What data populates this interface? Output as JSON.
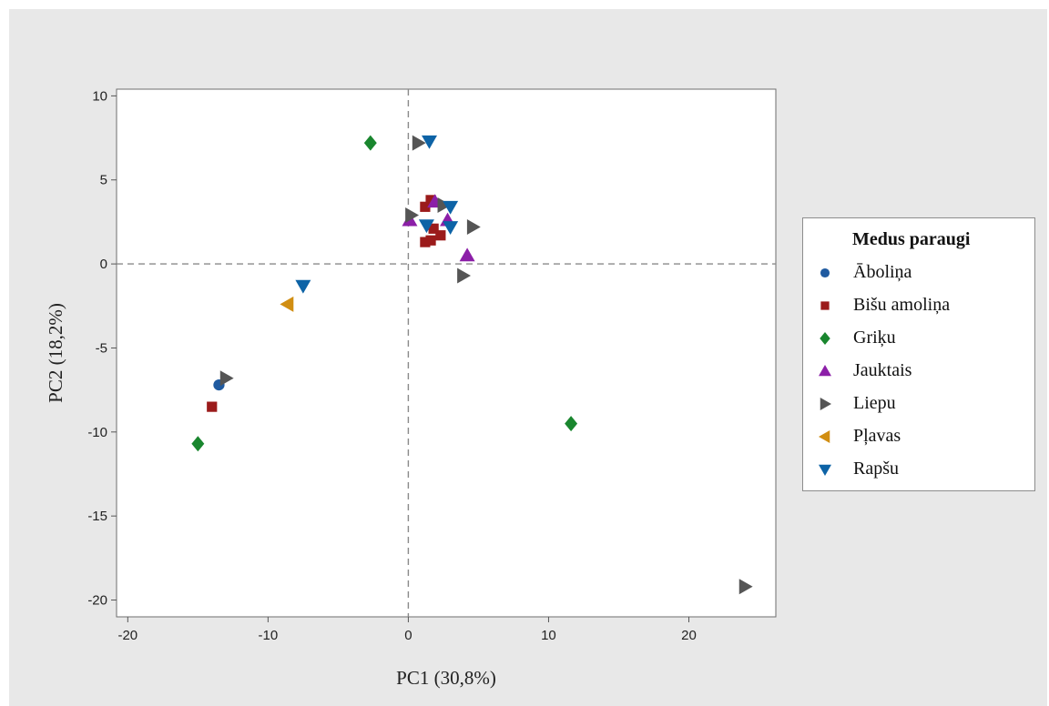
{
  "chart_data": {
    "type": "scatter",
    "xlabel": "PC1 (30,8%)",
    "ylabel": "PC2 (18,2%)",
    "xlim": [
      -20.8,
      26.2
    ],
    "ylim": [
      -21.0,
      10.4
    ],
    "xticks": [
      -20,
      -10,
      0,
      10,
      20
    ],
    "yticks": [
      10,
      5,
      0,
      -5,
      -10,
      -15,
      -20
    ],
    "reference_lines": {
      "x": 0,
      "y": 0,
      "style": "dashed"
    },
    "legend": {
      "title": "Medus paraugi",
      "placement": "right"
    },
    "series": [
      {
        "name": "Āboliņa",
        "marker": "circle",
        "color": "#1f5aa0",
        "points": [
          [
            -13.5,
            -7.2
          ]
        ]
      },
      {
        "name": "Bišu amoliņa",
        "marker": "square",
        "color": "#9b1b1b",
        "points": [
          [
            1.2,
            3.4
          ],
          [
            1.6,
            3.8
          ],
          [
            1.8,
            2.1
          ],
          [
            2.3,
            1.7
          ],
          [
            1.2,
            1.3
          ],
          [
            1.6,
            1.4
          ],
          [
            -14.0,
            -8.5
          ]
        ]
      },
      {
        "name": "Griķu",
        "marker": "diamond",
        "color": "#19862e",
        "points": [
          [
            -2.7,
            7.2
          ],
          [
            -15.0,
            -10.7
          ],
          [
            11.6,
            -9.5
          ]
        ]
      },
      {
        "name": "Jauktais",
        "marker": "triangle-up",
        "color": "#8c1fa8",
        "points": [
          [
            0.1,
            2.6
          ],
          [
            2.8,
            2.6
          ],
          [
            4.2,
            0.5
          ],
          [
            1.9,
            3.7
          ]
        ]
      },
      {
        "name": "Liepu",
        "marker": "triangle-right",
        "color": "#555555",
        "points": [
          [
            0.7,
            7.2
          ],
          [
            0.2,
            2.9
          ],
          [
            2.5,
            3.5
          ],
          [
            4.6,
            2.2
          ],
          [
            3.9,
            -0.7
          ],
          [
            -13.0,
            -6.8
          ],
          [
            24.0,
            -19.2
          ]
        ]
      },
      {
        "name": "Pļavas",
        "marker": "triangle-left",
        "color": "#d18e12",
        "points": [
          [
            -8.6,
            -2.4
          ]
        ]
      },
      {
        "name": "Rapšu",
        "marker": "triangle-down",
        "color": "#0d63a6",
        "points": [
          [
            1.5,
            7.3
          ],
          [
            1.3,
            2.3
          ],
          [
            3.0,
            2.2
          ],
          [
            3.0,
            3.4
          ],
          [
            -7.5,
            -1.3
          ]
        ]
      }
    ]
  }
}
